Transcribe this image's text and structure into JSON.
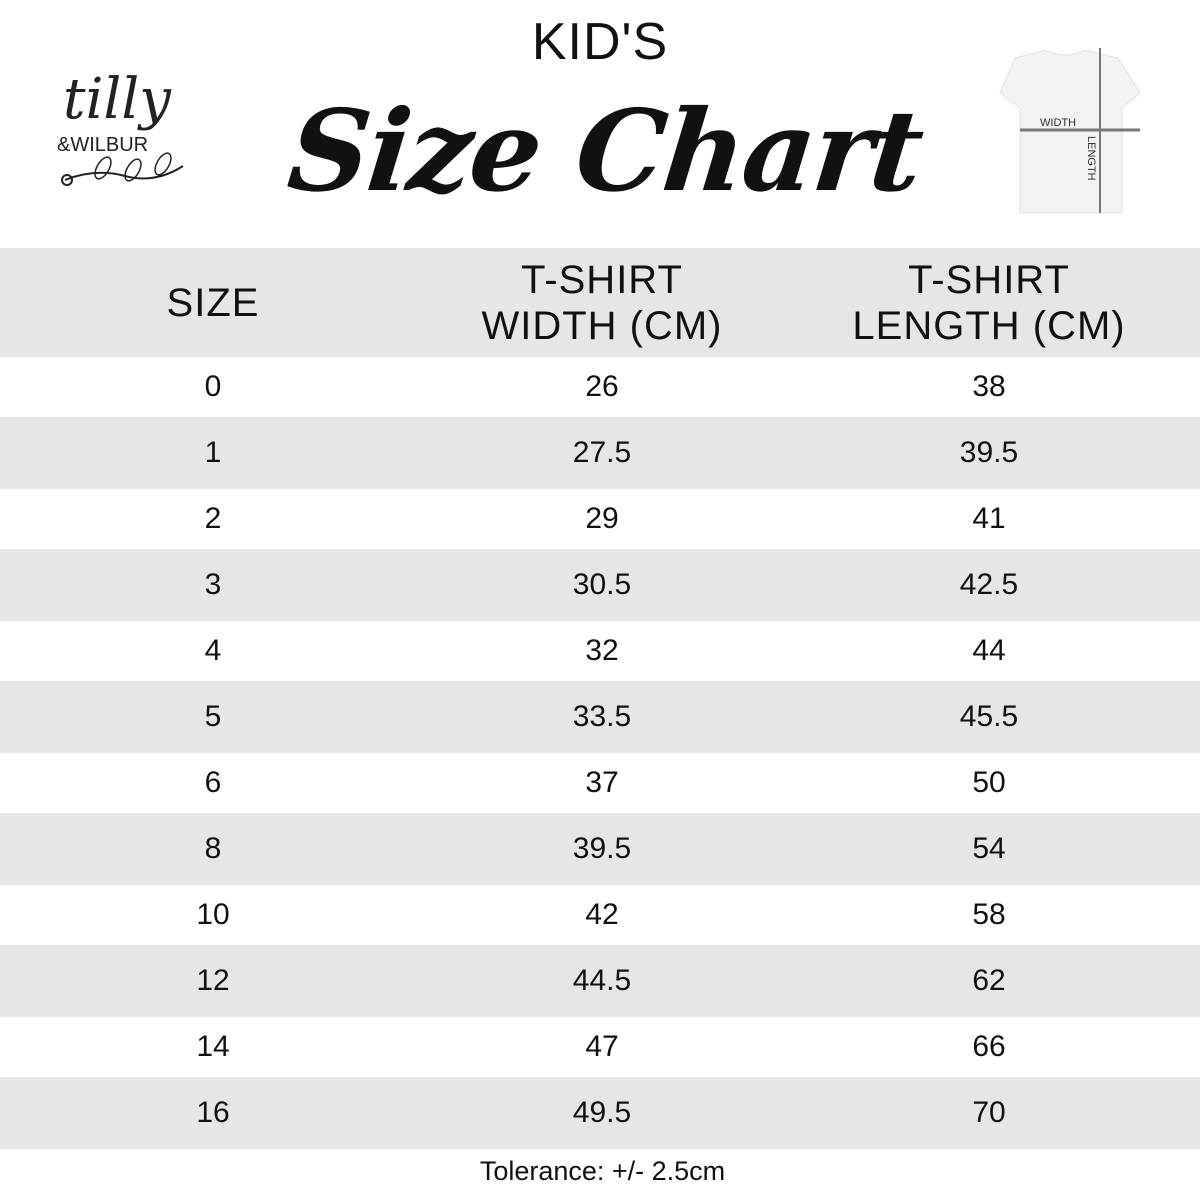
{
  "header": {
    "kids": "KID'S",
    "title": "Size Chart",
    "logo_text": "tilly & WILBUR",
    "shirt_labels": {
      "width": "WIDTH",
      "length": "LENGTH"
    }
  },
  "table": {
    "columns": [
      "SIZE",
      "T-SHIRT WIDTH (CM)",
      "T-SHIRT LENGTH (CM)"
    ],
    "column_lines": [
      [
        "SIZE"
      ],
      [
        "T-SHIRT",
        "WIDTH (CM)"
      ],
      [
        "T-SHIRT",
        "LENGTH (CM)"
      ]
    ],
    "rows": [
      [
        "0",
        "26",
        "38"
      ],
      [
        "1",
        "27.5",
        "39.5"
      ],
      [
        "2",
        "29",
        "41"
      ],
      [
        "3",
        "30.5",
        "42.5"
      ],
      [
        "4",
        "32",
        "44"
      ],
      [
        "5",
        "33.5",
        "45.5"
      ],
      [
        "6",
        "37",
        "50"
      ],
      [
        "8",
        "39.5",
        "54"
      ],
      [
        "10",
        "42",
        "58"
      ],
      [
        "12",
        "44.5",
        "62"
      ],
      [
        "14",
        "47",
        "66"
      ],
      [
        "16",
        "49.5",
        "70"
      ]
    ]
  },
  "footer": {
    "tolerance": "Tolerance: +/- 2.5cm"
  },
  "colors": {
    "stripe": "#e6e6e8",
    "text": "#111111"
  }
}
